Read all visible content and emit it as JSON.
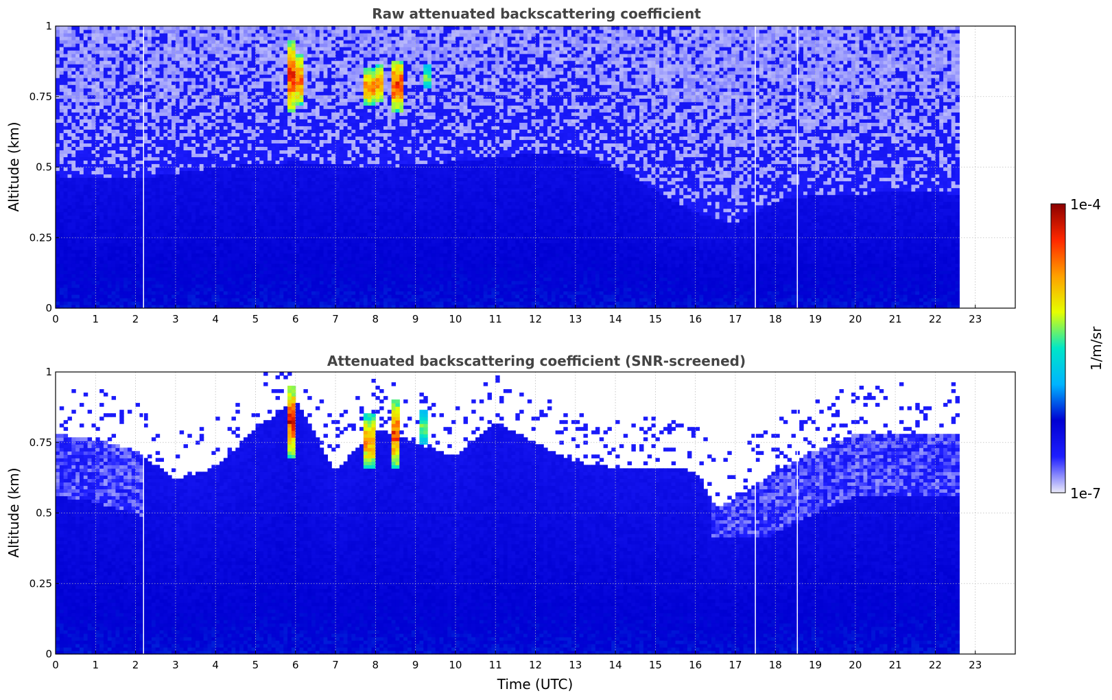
{
  "chart_data": [
    {
      "type": "heatmap",
      "title": "Raw attenuated backscattering coefficient",
      "xlabel": "",
      "ylabel": "Altitude (km)",
      "xlim": [
        0,
        24
      ],
      "ylim": [
        0,
        1
      ],
      "x_ticks": [
        "0",
        "1",
        "2",
        "3",
        "4",
        "5",
        "6",
        "7",
        "8",
        "9",
        "10",
        "11",
        "12",
        "13",
        "14",
        "15",
        "16",
        "17",
        "18",
        "19",
        "20",
        "21",
        "22",
        "23"
      ],
      "y_ticks": [
        "0",
        "0.25",
        "0.5",
        "0.75",
        "1"
      ],
      "grid": true,
      "data_end_time": 22.6,
      "gap_times": [
        2.2,
        17.5,
        18.55
      ],
      "signal_top_km": [
        {
          "x": 0,
          "y": 0.47
        },
        {
          "x": 2,
          "y": 0.46
        },
        {
          "x": 4,
          "y": 0.5
        },
        {
          "x": 6,
          "y": 0.52
        },
        {
          "x": 8,
          "y": 0.5
        },
        {
          "x": 10,
          "y": 0.52
        },
        {
          "x": 12,
          "y": 0.55
        },
        {
          "x": 13,
          "y": 0.55
        },
        {
          "x": 14,
          "y": 0.5
        },
        {
          "x": 15,
          "y": 0.42
        },
        {
          "x": 16,
          "y": 0.34
        },
        {
          "x": 17,
          "y": 0.3
        },
        {
          "x": 18,
          "y": 0.38
        },
        {
          "x": 19,
          "y": 0.4
        },
        {
          "x": 20,
          "y": 0.4
        },
        {
          "x": 21,
          "y": 0.42
        },
        {
          "x": 22,
          "y": 0.42
        },
        {
          "x": 22.6,
          "y": 0.4
        }
      ],
      "high_values": [
        {
          "x": 5.9,
          "y_range": [
            0.7,
            0.95
          ],
          "level": 1.0
        },
        {
          "x": 6.05,
          "y_range": [
            0.72,
            0.9
          ],
          "level": 0.9
        },
        {
          "x": 7.85,
          "y_range": [
            0.72,
            0.85
          ],
          "level": 0.85
        },
        {
          "x": 8.1,
          "y_range": [
            0.73,
            0.86
          ],
          "level": 0.9
        },
        {
          "x": 8.55,
          "y_range": [
            0.7,
            0.88
          ],
          "level": 1.0
        },
        {
          "x": 9.3,
          "y_range": [
            0.78,
            0.86
          ],
          "level": 0.45
        }
      ]
    },
    {
      "type": "heatmap",
      "title": "Attenuated backscattering coefficient (SNR-screened)",
      "xlabel": "Time (UTC)",
      "ylabel": "Altitude (km)",
      "xlim": [
        0,
        24
      ],
      "ylim": [
        0,
        1
      ],
      "x_ticks": [
        "0",
        "1",
        "2",
        "3",
        "4",
        "5",
        "6",
        "7",
        "8",
        "9",
        "10",
        "11",
        "12",
        "13",
        "14",
        "15",
        "16",
        "17",
        "18",
        "19",
        "20",
        "21",
        "22",
        "23"
      ],
      "y_ticks": [
        "0",
        "0.25",
        "0.5",
        "0.75",
        "1"
      ],
      "grid": true,
      "data_end_time": 22.6,
      "gap_times": [
        2.2,
        17.5,
        18.55
      ],
      "screened_top_km": [
        {
          "x": 0,
          "y": 0.78
        },
        {
          "x": 1,
          "y": 0.76
        },
        {
          "x": 2,
          "y": 0.72
        },
        {
          "x": 3,
          "y": 0.62
        },
        {
          "x": 4,
          "y": 0.66
        },
        {
          "x": 5,
          "y": 0.8
        },
        {
          "x": 6,
          "y": 0.9
        },
        {
          "x": 7,
          "y": 0.65
        },
        {
          "x": 8,
          "y": 0.8
        },
        {
          "x": 9,
          "y": 0.75
        },
        {
          "x": 10,
          "y": 0.7
        },
        {
          "x": 11,
          "y": 0.82
        },
        {
          "x": 12,
          "y": 0.75
        },
        {
          "x": 13,
          "y": 0.68
        },
        {
          "x": 14,
          "y": 0.66
        },
        {
          "x": 15,
          "y": 0.66
        },
        {
          "x": 16,
          "y": 0.65
        },
        {
          "x": 16.5,
          "y": 0.52
        },
        {
          "x": 17,
          "y": 0.55
        },
        {
          "x": 17.5,
          "y": 0.6
        },
        {
          "x": 18,
          "y": 0.65
        },
        {
          "x": 19,
          "y": 0.72
        },
        {
          "x": 20,
          "y": 0.78
        },
        {
          "x": 21,
          "y": 0.78
        },
        {
          "x": 22,
          "y": 0.78
        },
        {
          "x": 22.6,
          "y": 0.78
        }
      ],
      "high_values": [
        {
          "x": 5.9,
          "y_range": [
            0.7,
            0.95
          ],
          "level": 1.0
        },
        {
          "x": 7.85,
          "y_range": [
            0.66,
            0.85
          ],
          "level": 0.8
        },
        {
          "x": 8.5,
          "y_range": [
            0.66,
            0.9
          ],
          "level": 0.95
        },
        {
          "x": 9.2,
          "y_range": [
            0.75,
            0.86
          ],
          "level": 0.45
        }
      ]
    }
  ],
  "colorbar": {
    "label": "1/m/sr",
    "min_label": "1e-7",
    "max_label": "1e-4",
    "colormap": [
      "#ebebfa",
      "#1e1eff",
      "#0000d2",
      "#00b4ff",
      "#00e6c8",
      "#e6ff00",
      "#ffa000",
      "#ff2800",
      "#8b0000"
    ]
  }
}
